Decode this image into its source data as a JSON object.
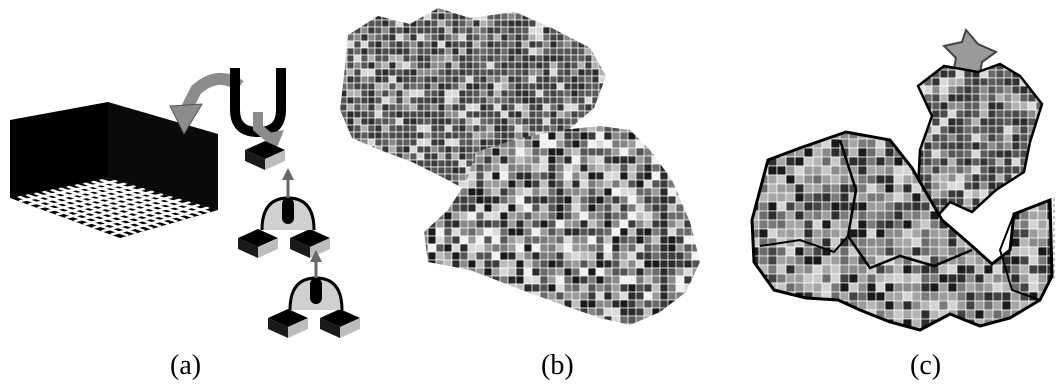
{
  "figure": {
    "captions": [
      "(a)",
      "(b)",
      "(c)"
    ],
    "operator_symbol": "U",
    "colors": {
      "ink": "#000000",
      "arrow_gray": "#8c8c8c",
      "cell_line": "#ffffff",
      "map_light": "#d9d9d9",
      "map_mid": "#7a7a7a",
      "map_dark": "#1a1a1a"
    }
  }
}
